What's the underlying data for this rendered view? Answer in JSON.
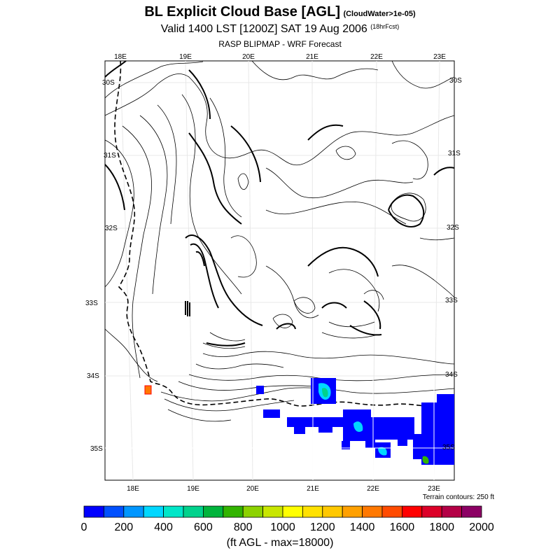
{
  "header": {
    "title": "BL Explicit Cloud Base [AGL]",
    "title_note": "(CloudWater>1e-05)",
    "subtitle": "Valid 1400 LST [1200Z] SAT 19 Aug 2006",
    "subtitle_note": "(18hrFcst)",
    "source": "RASP BLIPMAP - WRF Forecast"
  },
  "map": {
    "top_lon_labels": [
      "18E",
      "19E",
      "20E",
      "21E",
      "22E",
      "23E"
    ],
    "bottom_lon_labels": [
      "18E",
      "19E",
      "20E",
      "21E",
      "22E",
      "23E"
    ],
    "left_lat_labels": [
      "30S",
      "31S",
      "32S",
      "33S",
      "34S",
      "35S"
    ],
    "right_lat_labels": [
      "30S",
      "31S",
      "32S",
      "33S",
      "34S",
      "35S"
    ],
    "terrain_note": "Terrain contours: 250 ft"
  },
  "colorbar": {
    "colors": [
      "#0000ff",
      "#0050ff",
      "#0096ff",
      "#00d7ff",
      "#00e6c8",
      "#00d28c",
      "#00b43c",
      "#32b400",
      "#8cd200",
      "#c8e600",
      "#ffff00",
      "#ffe100",
      "#ffc800",
      "#ffa000",
      "#ff7800",
      "#ff4b00",
      "#ff0000",
      "#dc0028",
      "#b40046",
      "#8c0064"
    ],
    "tick_labels": [
      "0",
      "200",
      "400",
      "600",
      "800",
      "1000",
      "1200",
      "1400",
      "1600",
      "1800",
      "2000"
    ],
    "units_label": "(ft AGL - max=18000)"
  }
}
